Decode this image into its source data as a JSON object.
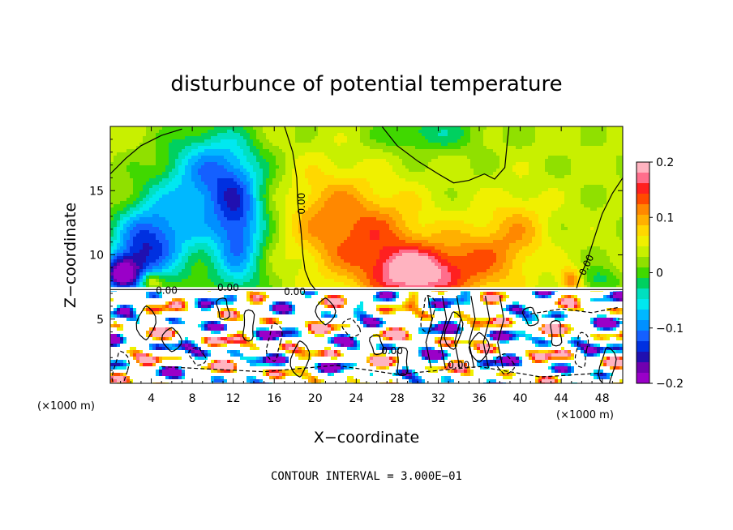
{
  "chart_data": {
    "type": "heatmap",
    "title": "disturbunce of potential temperature",
    "xlabel": "X−coordinate",
    "ylabel": "Z−coordinate",
    "x_unit": "(×1000 m)",
    "z_unit": "(×1000 m)",
    "xlim": [
      0,
      50
    ],
    "ylim": [
      0,
      20
    ],
    "x_ticks": [
      4,
      8,
      12,
      16,
      20,
      24,
      28,
      32,
      36,
      40,
      44,
      48
    ],
    "y_ticks": [
      5,
      10,
      15
    ],
    "colorbar": {
      "range": [
        -0.2,
        0.2
      ],
      "ticks": [
        "0.2",
        "0.1",
        "0",
        "−0.1",
        "−0.2"
      ],
      "colors": [
        "#ffb3c0",
        "#ff6e8c",
        "#ff2020",
        "#ff4a00",
        "#ff8800",
        "#ffb000",
        "#ffd800",
        "#f0f000",
        "#c8f000",
        "#90e000",
        "#40d800",
        "#00d060",
        "#00e0c0",
        "#00e8f0",
        "#00b8ff",
        "#0090ff",
        "#1460ff",
        "#0030e0",
        "#2010b0",
        "#7000b0",
        "#9a00c8"
      ]
    },
    "contour_labels": [
      "0.00",
      "0.00",
      "0.00",
      "0.00",
      "0.00",
      "0.00",
      "0.00"
    ],
    "contour_interval": "CONTOUR INTERVAL = 3.000E−01",
    "interface_z": 7.3,
    "upper_field": [
      {
        "x": 1,
        "z": 8.5,
        "v": -0.2,
        "sx": 2,
        "sz": 1.5
      },
      {
        "x": 3,
        "z": 10.5,
        "v": -0.13,
        "sx": 3,
        "sz": 3
      },
      {
        "x": 6,
        "z": 12,
        "v": -0.09,
        "sx": 4,
        "sz": 4
      },
      {
        "x": 12.5,
        "z": 11.5,
        "v": -0.13,
        "sx": 2.5,
        "sz": 5
      },
      {
        "x": 11,
        "z": 15.5,
        "v": -0.08,
        "sx": 4,
        "sz": 4
      },
      {
        "x": 9,
        "z": 17,
        "v": -0.06,
        "sx": 4,
        "sz": 3
      },
      {
        "x": 30,
        "z": 8.5,
        "v": 0.16,
        "sx": 4,
        "sz": 2
      },
      {
        "x": 26,
        "z": 11,
        "v": 0.09,
        "sx": 5,
        "sz": 4
      },
      {
        "x": 36,
        "z": 9.5,
        "v": 0.08,
        "sx": 4,
        "sz": 3
      },
      {
        "x": 21,
        "z": 13,
        "v": 0.06,
        "sx": 4,
        "sz": 4
      },
      {
        "x": 40,
        "z": 12,
        "v": 0.05,
        "sx": 3,
        "sz": 3
      },
      {
        "x": 31,
        "z": 19.5,
        "v": -0.06,
        "sx": 5,
        "sz": 1.5
      },
      {
        "x": 45,
        "z": 8,
        "v": 0.1,
        "sx": 1.2,
        "sz": 1
      },
      {
        "x": 47.5,
        "z": 8,
        "v": -0.06,
        "sx": 2,
        "sz": 1
      },
      {
        "x": 4,
        "z": 8,
        "v": 0.1,
        "sx": 1,
        "sz": 0.6
      }
    ]
  }
}
